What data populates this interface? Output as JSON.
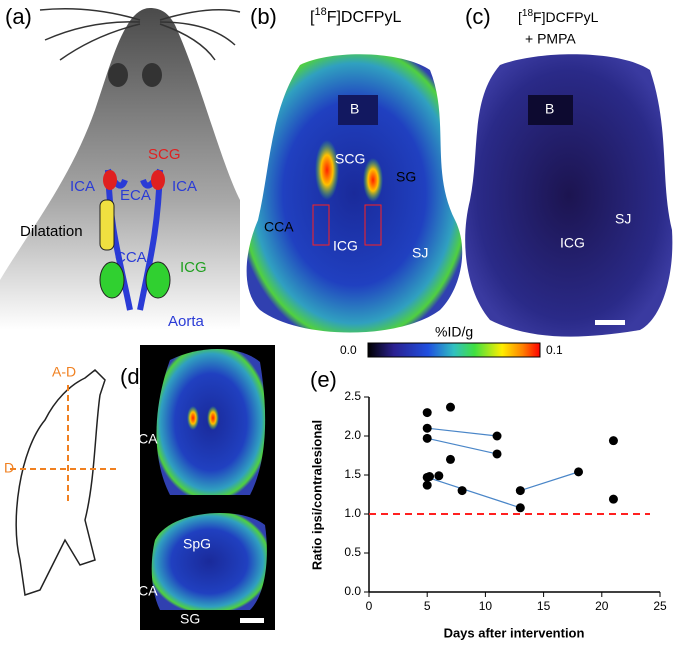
{
  "panels": {
    "a": {
      "label": "(a)",
      "scg": "SCG",
      "ica_left": "ICA",
      "eca": "ECA",
      "ica_right": "ICA",
      "dilatation": "Dilatation",
      "cca": "CCA",
      "icg": "ICG",
      "aorta": "Aorta"
    },
    "b": {
      "label": "(b)",
      "tracer": [
        "[",
        "18",
        "F]DCFPyL"
      ],
      "b": "B",
      "scg": "SCG",
      "sg": "SG",
      "cca": "CCA",
      "icg": "ICG",
      "sj": "SJ"
    },
    "c": {
      "label": "(c)",
      "tracer": [
        "[",
        "18",
        "F]DCFPyL"
      ],
      "blocker": "+ PMPA",
      "b": "B",
      "sj": "SJ",
      "icg": "ICG"
    },
    "d": {
      "label": "(d)",
      "cca_top": "CCA",
      "cca_bottom": "CCA",
      "spg": "SpG",
      "sg": "SG",
      "plane_ad": "A-D",
      "plane_d": "D"
    },
    "colorbar": {
      "label": "%ID/g",
      "ticks": [
        {
          "value": 0,
          "label": "0.0"
        },
        0.1
      ]
    }
  },
  "chart_data": {
    "type": "scatter",
    "title": "(e)",
    "x_label": "Days after intervention",
    "y_label": "Ratio ipsi/contralesional",
    "xlim": [
      0,
      25
    ],
    "xticks": [
      0,
      5,
      10,
      15,
      20,
      25
    ],
    "ylim": [
      0,
      2.5
    ],
    "yticks": [
      {
        "value": 0,
        "label": "0.0"
      },
      0.5,
      {
        "value": 1,
        "label": "1.0"
      },
      1.5,
      {
        "value": 2,
        "label": "2.0"
      },
      2.5
    ],
    "point_color": "#000000",
    "line_color": "#4a86c8",
    "reference_line": {
      "value": 1.0,
      "color": "#ff2020"
    },
    "series": [
      {
        "x": [
          5,
          11
        ],
        "values": [
          2.1,
          2.0
        ]
      },
      {
        "x": [
          5,
          11
        ],
        "values": [
          1.97,
          1.77
        ]
      },
      {
        "x": [
          5,
          13
        ],
        "values": [
          1.47,
          1.08
        ]
      },
      {
        "x": [
          13,
          18
        ],
        "values": [
          1.3,
          1.54
        ]
      },
      {
        "x": [
          5
        ],
        "values": [
          2.3
        ]
      },
      {
        "x": [
          5.2
        ],
        "values": [
          1.48
        ]
      },
      {
        "x": [
          5
        ],
        "values": [
          1.37
        ]
      },
      {
        "x": [
          6
        ],
        "values": [
          1.49
        ]
      },
      {
        "x": [
          7
        ],
        "values": [
          2.37
        ]
      },
      {
        "x": [
          7
        ],
        "values": [
          1.7
        ]
      },
      {
        "x": [
          8
        ],
        "values": [
          1.3
        ]
      },
      {
        "x": [
          21
        ],
        "values": [
          1.94
        ]
      },
      {
        "x": [
          21
        ],
        "values": [
          1.19
        ]
      }
    ]
  }
}
